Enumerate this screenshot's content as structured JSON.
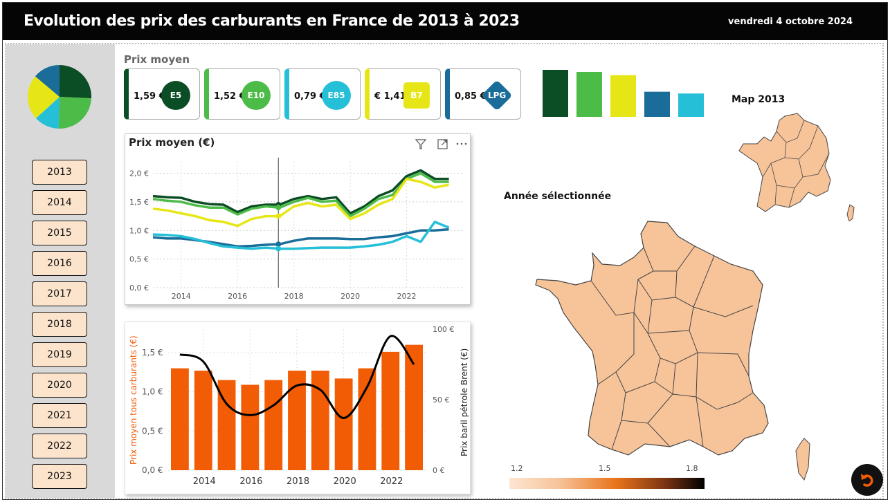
{
  "header": {
    "title": "Evolution des prix des carburants en France de 2013 à 2023",
    "date": "vendredi 4 octobre 2024"
  },
  "sidebar": {
    "years": [
      "2013",
      "2014",
      "2015",
      "2016",
      "2017",
      "2018",
      "2019",
      "2020",
      "2021",
      "2022",
      "2023"
    ]
  },
  "kpis": {
    "title": "Prix moyen",
    "cards": [
      {
        "value": "1,59 €",
        "badge": "E5",
        "color": "#0b4d24"
      },
      {
        "value": "1,52 €",
        "badge": "E10",
        "color": "#4dbb47"
      },
      {
        "value": "0,79 €",
        "badge": "E85",
        "color": "#26bfd8"
      },
      {
        "value": "€ 1,41",
        "badge": "B7",
        "color": "#e6e617"
      },
      {
        "value": "0,85 €",
        "badge": "LPG",
        "color": "#1a6d99"
      }
    ]
  },
  "line_panel": {
    "title": "Prix moyen (€)",
    "icons": [
      "filter-icon",
      "focus-mode-icon",
      "more-options-icon"
    ]
  },
  "combo_panel": {
    "ylabel_left": "Prix moyen tous carburants (€)",
    "ylabel_right": "Prix baril pétrole Brent (€)"
  },
  "maps": {
    "small_title": "Map 2013",
    "big_title": "Année sélectionnée",
    "legend": [
      "1.2",
      "1.5",
      "1.8"
    ],
    "fill_color": "#f7c49a"
  },
  "chart_data": [
    {
      "type": "pie",
      "labels": [
        "E5",
        "E10",
        "E85",
        "B7",
        "LPG"
      ],
      "values": [
        25.5,
        24.4,
        12.7,
        22.7,
        13.7
      ],
      "colors": [
        "#0b4d24",
        "#4dbb47",
        "#26bfd8",
        "#e6e617",
        "#1a6d99"
      ]
    },
    {
      "type": "bar",
      "categories": [
        "E5",
        "E10",
        "B7",
        "LPG",
        "E85"
      ],
      "values": [
        1.59,
        1.52,
        1.41,
        0.85,
        0.79
      ],
      "colors": [
        "#0b4d24",
        "#4dbb47",
        "#e6e617",
        "#1a6d99",
        "#26bfd8"
      ]
    },
    {
      "type": "line",
      "title": "Prix moyen (€)",
      "xlim": [
        2013,
        2024
      ],
      "ylim": [
        0,
        2.2
      ],
      "xticks": [
        "2014",
        "2016",
        "2018",
        "2020",
        "2022"
      ],
      "yticks": [
        "0,0 €",
        "0,5 €",
        "1,0 €",
        "1,5 €",
        "2,0 €"
      ],
      "marker_x": 2017.45,
      "x": [
        2013.0,
        2013.5,
        2014.0,
        2014.5,
        2015.0,
        2015.5,
        2016.0,
        2016.5,
        2017.0,
        2017.5,
        2018.0,
        2018.5,
        2019.0,
        2019.5,
        2020.0,
        2020.5,
        2021.0,
        2021.5,
        2022.0,
        2022.5,
        2023.0,
        2023.5
      ],
      "series": [
        {
          "name": "E5",
          "color": "#0b4d24",
          "values": [
            1.6,
            1.58,
            1.57,
            1.5,
            1.46,
            1.45,
            1.32,
            1.42,
            1.45,
            1.45,
            1.55,
            1.6,
            1.55,
            1.58,
            1.3,
            1.42,
            1.6,
            1.7,
            1.95,
            2.05,
            1.9,
            1.9
          ]
        },
        {
          "name": "E10",
          "color": "#4dbb47",
          "values": [
            1.55,
            1.52,
            1.5,
            1.44,
            1.4,
            1.4,
            1.28,
            1.38,
            1.42,
            1.4,
            1.5,
            1.57,
            1.5,
            1.52,
            1.25,
            1.38,
            1.55,
            1.62,
            1.9,
            2.0,
            1.85,
            1.85
          ]
        },
        {
          "name": "B7",
          "color": "#e6e617",
          "values": [
            1.38,
            1.35,
            1.3,
            1.25,
            1.18,
            1.15,
            1.08,
            1.2,
            1.25,
            1.25,
            1.42,
            1.48,
            1.42,
            1.45,
            1.2,
            1.3,
            1.45,
            1.55,
            1.9,
            1.85,
            1.75,
            1.8
          ]
        },
        {
          "name": "LPG",
          "color": "#1a6d99",
          "values": [
            0.88,
            0.86,
            0.86,
            0.83,
            0.8,
            0.76,
            0.72,
            0.73,
            0.75,
            0.76,
            0.82,
            0.86,
            0.86,
            0.86,
            0.85,
            0.85,
            0.88,
            0.9,
            0.95,
            1.0,
            1.0,
            1.02
          ]
        },
        {
          "name": "E85",
          "color": "#26bfd8",
          "values": [
            0.93,
            0.92,
            0.9,
            0.85,
            0.78,
            0.72,
            0.7,
            0.68,
            0.7,
            0.68,
            0.68,
            0.69,
            0.7,
            0.7,
            0.7,
            0.72,
            0.75,
            0.8,
            0.9,
            0.8,
            1.15,
            1.05
          ]
        }
      ]
    },
    {
      "type": "bar",
      "categories": [
        "2013",
        "2014",
        "2015",
        "2016",
        "2017",
        "2018",
        "2019",
        "2020",
        "2021",
        "2022",
        "2023"
      ],
      "xticks": [
        "2014",
        "2016",
        "2018",
        "2020",
        "2022"
      ],
      "ylim": [
        0,
        1.8
      ],
      "yticks": [
        "0,0 €",
        "0,5 €",
        "1,0 €",
        "1,5 €"
      ],
      "values": [
        1.3,
        1.27,
        1.15,
        1.09,
        1.15,
        1.27,
        1.27,
        1.17,
        1.3,
        1.51,
        1.6
      ],
      "bar_color": "#f25c05",
      "series": [
        {
          "name": "Prix baril pétrole Brent (€)",
          "axis": "right",
          "color": "#000000",
          "ylim": [
            0,
            100
          ],
          "yticks": [
            "0 €",
            "50 €",
            "100 €"
          ],
          "values": [
            82,
            77,
            47,
            39,
            46,
            60,
            57,
            37,
            59,
            95,
            75
          ]
        }
      ]
    }
  ]
}
